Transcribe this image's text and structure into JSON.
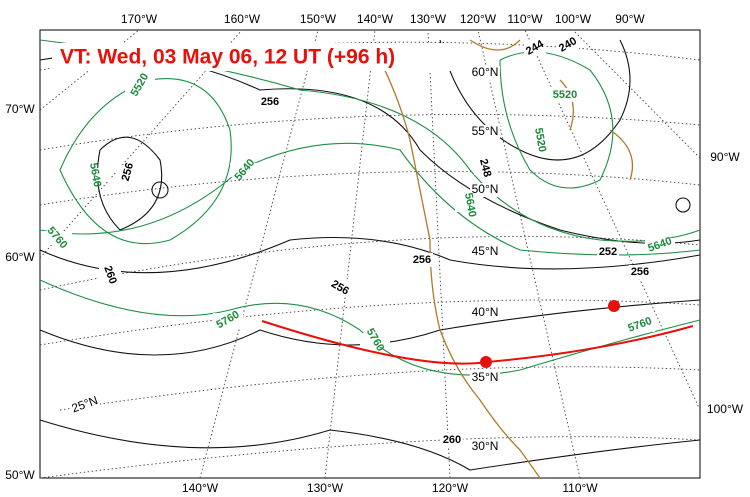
{
  "title": "VT:  Wed, 03 May 06, 12 UT (+96 h)",
  "top_longitudes": [
    "170°W",
    "160°W",
    "150°W",
    "140°W",
    "130°W",
    "120°W",
    "110°W",
    "100°W",
    "90°W"
  ],
  "left_longitudes": [
    "70°W",
    "60°W",
    "50°W"
  ],
  "right_longitudes": [
    "90°W",
    "100°W"
  ],
  "bottom_longitudes": [
    "140°W",
    "130°W",
    "120°W",
    "110°W"
  ],
  "latitudes": [
    "60°N",
    "55°N",
    "50°N",
    "45°N",
    "40°N",
    "35°N",
    "30°N",
    "25°N"
  ],
  "black_contour_labels": [
    "256",
    "256",
    "248",
    "244",
    "240",
    "252",
    "256",
    "256",
    "256",
    "260",
    "260"
  ],
  "green_contour_labels": [
    "5520",
    "5520",
    "5520",
    "5640",
    "5640",
    "5640",
    "5640",
    "5760",
    "5760",
    "5760",
    "5760"
  ]
}
